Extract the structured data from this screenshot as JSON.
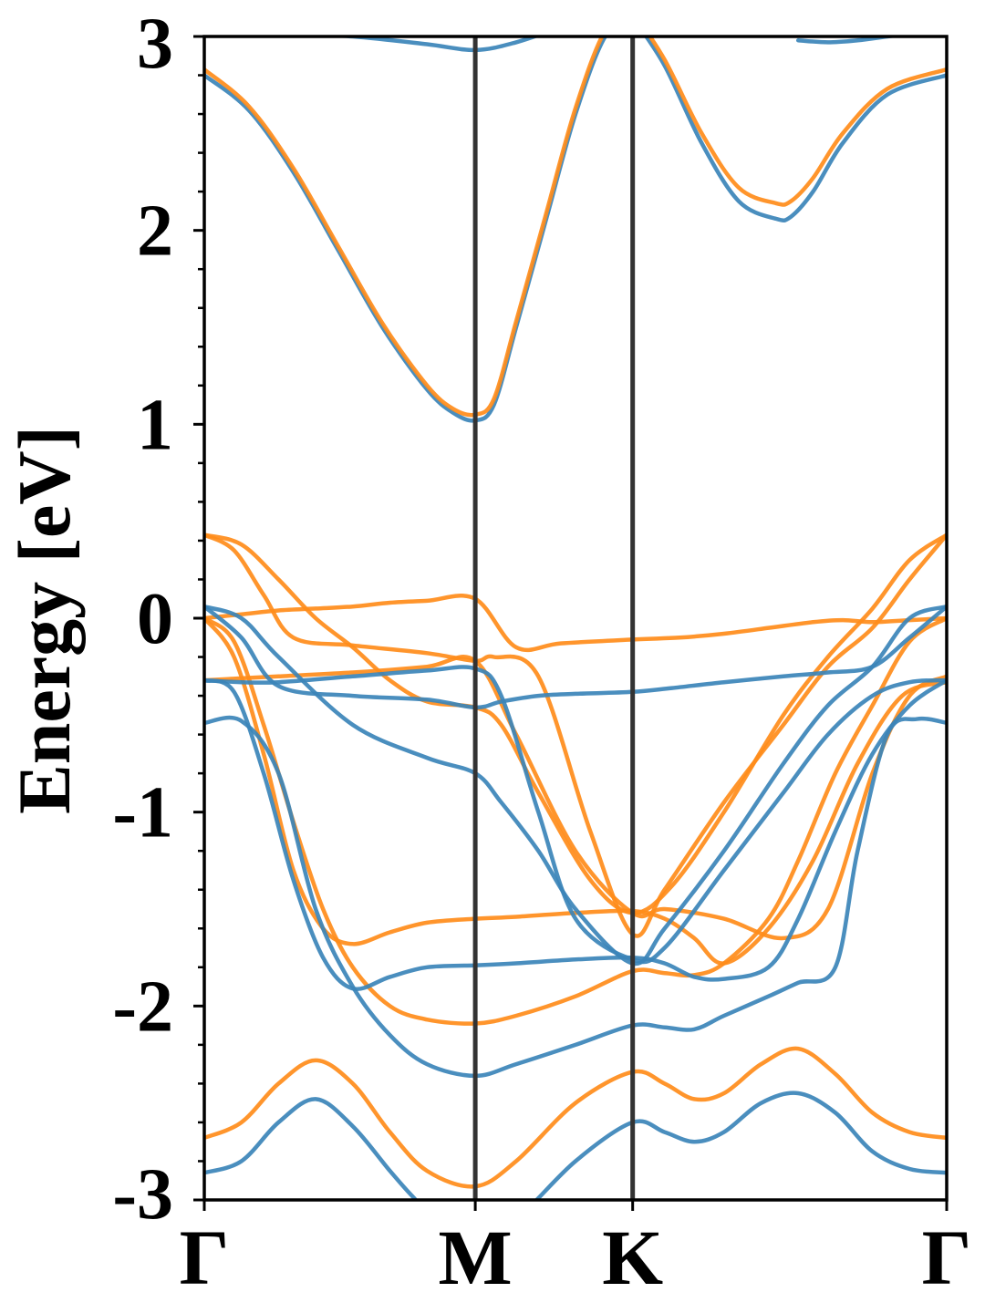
{
  "chart_data": {
    "type": "line",
    "title": "",
    "xlabel": "",
    "ylabel": "Energy [eV]",
    "ylim": [
      -3,
      3
    ],
    "xlim": [
      0,
      1
    ],
    "grid": false,
    "legend": "none",
    "colors": {
      "blue": "#3b84b8",
      "orange": "#ff8c1a",
      "hsym_line": "#333333"
    },
    "x_ticks": [
      {
        "x": 0.0,
        "label": "Γ"
      },
      {
        "x": 0.365,
        "label": "M"
      },
      {
        "x": 0.577,
        "label": "K"
      },
      {
        "x": 1.0,
        "label": "Γ"
      }
    ],
    "y_ticks": [
      -3,
      -2,
      -1,
      0,
      1,
      2,
      3
    ],
    "y_tick_labels": [
      "-3",
      "-2",
      "-1",
      "0",
      "1",
      "2",
      "3"
    ],
    "high_symmetry_lines": [
      0.365,
      0.577
    ],
    "series": [
      {
        "color": "blue",
        "x": [
          0,
          0.06,
          0.12,
          0.18,
          0.24,
          0.3,
          0.335,
          0.365,
          0.39,
          0.42,
          0.46,
          0.5,
          0.54,
          0.577
        ],
        "y": [
          2.8,
          2.62,
          2.3,
          1.9,
          1.5,
          1.18,
          1.06,
          1.02,
          1.1,
          1.5,
          2.05,
          2.6,
          3.0,
          3.1
        ]
      },
      {
        "color": "orange",
        "x": [
          0,
          0.06,
          0.12,
          0.18,
          0.24,
          0.3,
          0.335,
          0.365,
          0.39,
          0.42,
          0.46,
          0.5,
          0.54,
          0.577
        ],
        "y": [
          2.83,
          2.64,
          2.32,
          1.92,
          1.52,
          1.2,
          1.08,
          1.05,
          1.13,
          1.53,
          2.08,
          2.63,
          3.03,
          3.13
        ]
      },
      {
        "color": "blue",
        "x": [
          0,
          0.1,
          0.2,
          0.3,
          0.365,
          0.42,
          0.48,
          0.54,
          0.577
        ],
        "y": [
          3.05,
          3.02,
          3.0,
          2.96,
          2.93,
          2.97,
          3.05,
          3.15,
          3.2
        ]
      },
      {
        "color": "blue",
        "x": [
          0.577,
          0.62,
          0.67,
          0.72,
          0.77,
          0.79,
          0.82,
          0.86,
          0.92,
          1.0
        ],
        "y": [
          3.1,
          2.85,
          2.45,
          2.15,
          2.06,
          2.07,
          2.2,
          2.45,
          2.7,
          2.8
        ]
      },
      {
        "color": "orange",
        "x": [
          0.577,
          0.62,
          0.67,
          0.72,
          0.77,
          0.79,
          0.82,
          0.86,
          0.92,
          1.0
        ],
        "y": [
          3.13,
          2.88,
          2.5,
          2.22,
          2.14,
          2.15,
          2.27,
          2.5,
          2.73,
          2.83
        ]
      },
      {
        "color": "blue",
        "x": [
          0.8,
          0.84,
          0.88,
          0.92,
          0.96,
          1.0
        ],
        "y": [
          2.98,
          2.97,
          2.98,
          3.0,
          3.02,
          3.04
        ]
      },
      {
        "color": "orange",
        "x": [
          0,
          0.05,
          0.1,
          0.15,
          0.2,
          0.25,
          0.3,
          0.365,
          0.42,
          0.48,
          0.577,
          0.64,
          0.7,
          0.76,
          0.82,
          0.86,
          0.9,
          0.95,
          1.0
        ],
        "y": [
          0.0,
          0.02,
          0.04,
          0.05,
          0.06,
          0.08,
          0.09,
          0.1,
          -0.15,
          -0.13,
          -0.11,
          -0.1,
          -0.08,
          -0.05,
          -0.02,
          -0.01,
          -0.02,
          -0.01,
          0.0
        ]
      },
      {
        "color": "orange",
        "x": [
          0,
          0.04,
          0.08,
          0.12,
          0.2,
          0.3,
          0.365,
          0.39,
          0.45,
          0.52,
          0.577,
          0.62,
          0.7,
          0.78,
          0.84,
          0.9,
          0.95,
          1.0
        ],
        "y": [
          0.43,
          0.35,
          0.12,
          -0.1,
          -0.14,
          -0.18,
          -0.22,
          -0.2,
          -0.3,
          -1.1,
          -1.63,
          -1.4,
          -0.95,
          -0.55,
          -0.25,
          -0.05,
          0.2,
          0.43
        ]
      },
      {
        "color": "orange",
        "x": [
          0,
          0.05,
          0.1,
          0.15,
          0.2,
          0.25,
          0.3,
          0.365,
          0.4,
          0.45,
          0.52,
          0.577,
          0.63,
          0.7,
          0.78,
          0.84,
          0.9,
          0.95,
          1.0
        ],
        "y": [
          0.43,
          0.38,
          0.2,
          0.0,
          -0.15,
          -0.32,
          -0.43,
          -0.46,
          -0.55,
          -0.9,
          -1.35,
          -1.52,
          -1.38,
          -1.0,
          -0.5,
          -0.2,
          0.05,
          0.3,
          0.43
        ]
      },
      {
        "color": "orange",
        "x": [
          0,
          0.05,
          0.1,
          0.2,
          0.3,
          0.365,
          0.42,
          0.5,
          0.577,
          0.62,
          0.7,
          0.78,
          0.84,
          0.9,
          0.95,
          1.0
        ],
        "y": [
          -0.32,
          -0.31,
          -0.3,
          -0.28,
          -0.25,
          -0.22,
          -0.6,
          -1.2,
          -1.52,
          -1.5,
          -1.55,
          -1.65,
          -1.5,
          -0.8,
          -0.4,
          -0.3
        ]
      },
      {
        "color": "orange",
        "x": [
          0,
          0.04,
          0.08,
          0.12,
          0.16,
          0.2,
          0.25,
          0.3,
          0.365,
          0.42,
          0.5,
          0.577,
          0.62,
          0.66,
          0.7,
          0.76,
          0.82,
          0.88,
          0.94,
          1.0
        ],
        "y": [
          0.0,
          -0.2,
          -0.7,
          -1.3,
          -1.6,
          -1.68,
          -1.62,
          -1.57,
          -1.55,
          -1.54,
          -1.52,
          -1.51,
          -1.55,
          -1.65,
          -1.78,
          -1.6,
          -1.25,
          -0.75,
          -0.4,
          -0.33
        ]
      },
      {
        "color": "orange",
        "x": [
          0,
          0.04,
          0.08,
          0.12,
          0.16,
          0.2,
          0.25,
          0.3,
          0.365,
          0.42,
          0.5,
          0.577,
          0.62,
          0.66,
          0.7,
          0.76,
          0.8,
          0.85,
          0.9,
          0.95,
          1.0
        ],
        "y": [
          0.0,
          -0.12,
          -0.55,
          -1.05,
          -1.5,
          -1.8,
          -2.0,
          -2.07,
          -2.09,
          -2.05,
          -1.95,
          -1.82,
          -1.83,
          -1.84,
          -1.78,
          -1.55,
          -1.25,
          -0.8,
          -0.45,
          -0.12,
          0.0
        ]
      },
      {
        "color": "blue",
        "x": [
          0,
          0.05,
          0.1,
          0.2,
          0.3,
          0.365,
          0.4,
          0.45,
          0.5,
          0.577,
          0.62,
          0.7,
          0.78,
          0.84,
          0.9,
          0.95,
          1.0
        ],
        "y": [
          0.06,
          0.0,
          -0.2,
          -0.55,
          -0.72,
          -0.8,
          -0.95,
          -1.2,
          -1.5,
          -1.78,
          -1.6,
          -1.2,
          -0.75,
          -0.45,
          -0.25,
          0.0,
          0.06
        ]
      },
      {
        "color": "blue",
        "x": [
          0,
          0.05,
          0.1,
          0.2,
          0.3,
          0.365,
          0.4,
          0.45,
          0.5,
          0.577,
          0.63,
          0.7,
          0.78,
          0.84,
          0.9,
          0.95,
          1.0
        ],
        "y": [
          0.06,
          -0.1,
          -0.35,
          -0.4,
          -0.42,
          -0.46,
          -0.43,
          -0.4,
          -0.39,
          -0.38,
          -0.36,
          -0.33,
          -0.3,
          -0.28,
          -0.25,
          -0.1,
          0.06
        ]
      },
      {
        "color": "blue",
        "x": [
          0,
          0.05,
          0.1,
          0.2,
          0.3,
          0.365,
          0.4,
          0.45,
          0.5,
          0.577,
          0.62,
          0.7,
          0.78,
          0.84,
          0.9,
          0.95,
          1.0
        ],
        "y": [
          -0.32,
          -0.33,
          -0.33,
          -0.3,
          -0.27,
          -0.26,
          -0.4,
          -1.0,
          -1.55,
          -1.76,
          -1.7,
          -1.3,
          -0.9,
          -0.6,
          -0.4,
          -0.33,
          -0.32
        ]
      },
      {
        "color": "blue",
        "x": [
          0,
          0.04,
          0.08,
          0.12,
          0.16,
          0.2,
          0.25,
          0.3,
          0.365,
          0.42,
          0.5,
          0.577,
          0.62,
          0.66,
          0.7,
          0.76,
          0.8,
          0.85,
          0.9,
          0.95,
          1.0
        ],
        "y": [
          -0.32,
          -0.38,
          -0.8,
          -1.35,
          -1.75,
          -1.91,
          -1.85,
          -1.8,
          -1.79,
          -1.78,
          -1.76,
          -1.75,
          -1.78,
          -1.85,
          -1.86,
          -1.8,
          -1.55,
          -1.1,
          -0.7,
          -0.45,
          -0.32
        ]
      },
      {
        "color": "blue",
        "x": [
          0,
          0.05,
          0.1,
          0.15,
          0.2,
          0.25,
          0.3,
          0.365,
          0.42,
          0.5,
          0.577,
          0.62,
          0.66,
          0.7,
          0.76,
          0.8,
          0.85,
          0.88,
          0.92,
          0.96,
          1.0
        ],
        "y": [
          -0.54,
          -0.53,
          -0.8,
          -1.5,
          -1.9,
          -2.15,
          -2.3,
          -2.36,
          -2.3,
          -2.2,
          -2.1,
          -2.11,
          -2.12,
          -2.05,
          -1.95,
          -1.88,
          -1.8,
          -1.2,
          -0.6,
          -0.52,
          -0.54
        ]
      },
      {
        "color": "orange",
        "x": [
          0,
          0.05,
          0.1,
          0.15,
          0.2,
          0.25,
          0.3,
          0.365,
          0.42,
          0.5,
          0.577,
          0.62,
          0.66,
          0.7,
          0.75,
          0.8,
          0.85,
          0.9,
          0.95,
          1.0
        ],
        "y": [
          -2.68,
          -2.6,
          -2.4,
          -2.28,
          -2.4,
          -2.65,
          -2.85,
          -2.93,
          -2.8,
          -2.5,
          -2.34,
          -2.4,
          -2.48,
          -2.45,
          -2.3,
          -2.22,
          -2.35,
          -2.55,
          -2.65,
          -2.68
        ]
      },
      {
        "color": "blue",
        "x": [
          0,
          0.05,
          0.1,
          0.15,
          0.2,
          0.25,
          0.28,
          0.3,
          0.365,
          0.42,
          0.5,
          0.577,
          0.62,
          0.66,
          0.7,
          0.75,
          0.8,
          0.85,
          0.9,
          0.95,
          1.0
        ],
        "y": [
          -2.86,
          -2.8,
          -2.6,
          -2.48,
          -2.62,
          -2.85,
          -2.98,
          -3.05,
          -3.2,
          -3.1,
          -2.8,
          -2.6,
          -2.65,
          -2.7,
          -2.65,
          -2.5,
          -2.45,
          -2.55,
          -2.75,
          -2.84,
          -2.86
        ]
      }
    ]
  }
}
